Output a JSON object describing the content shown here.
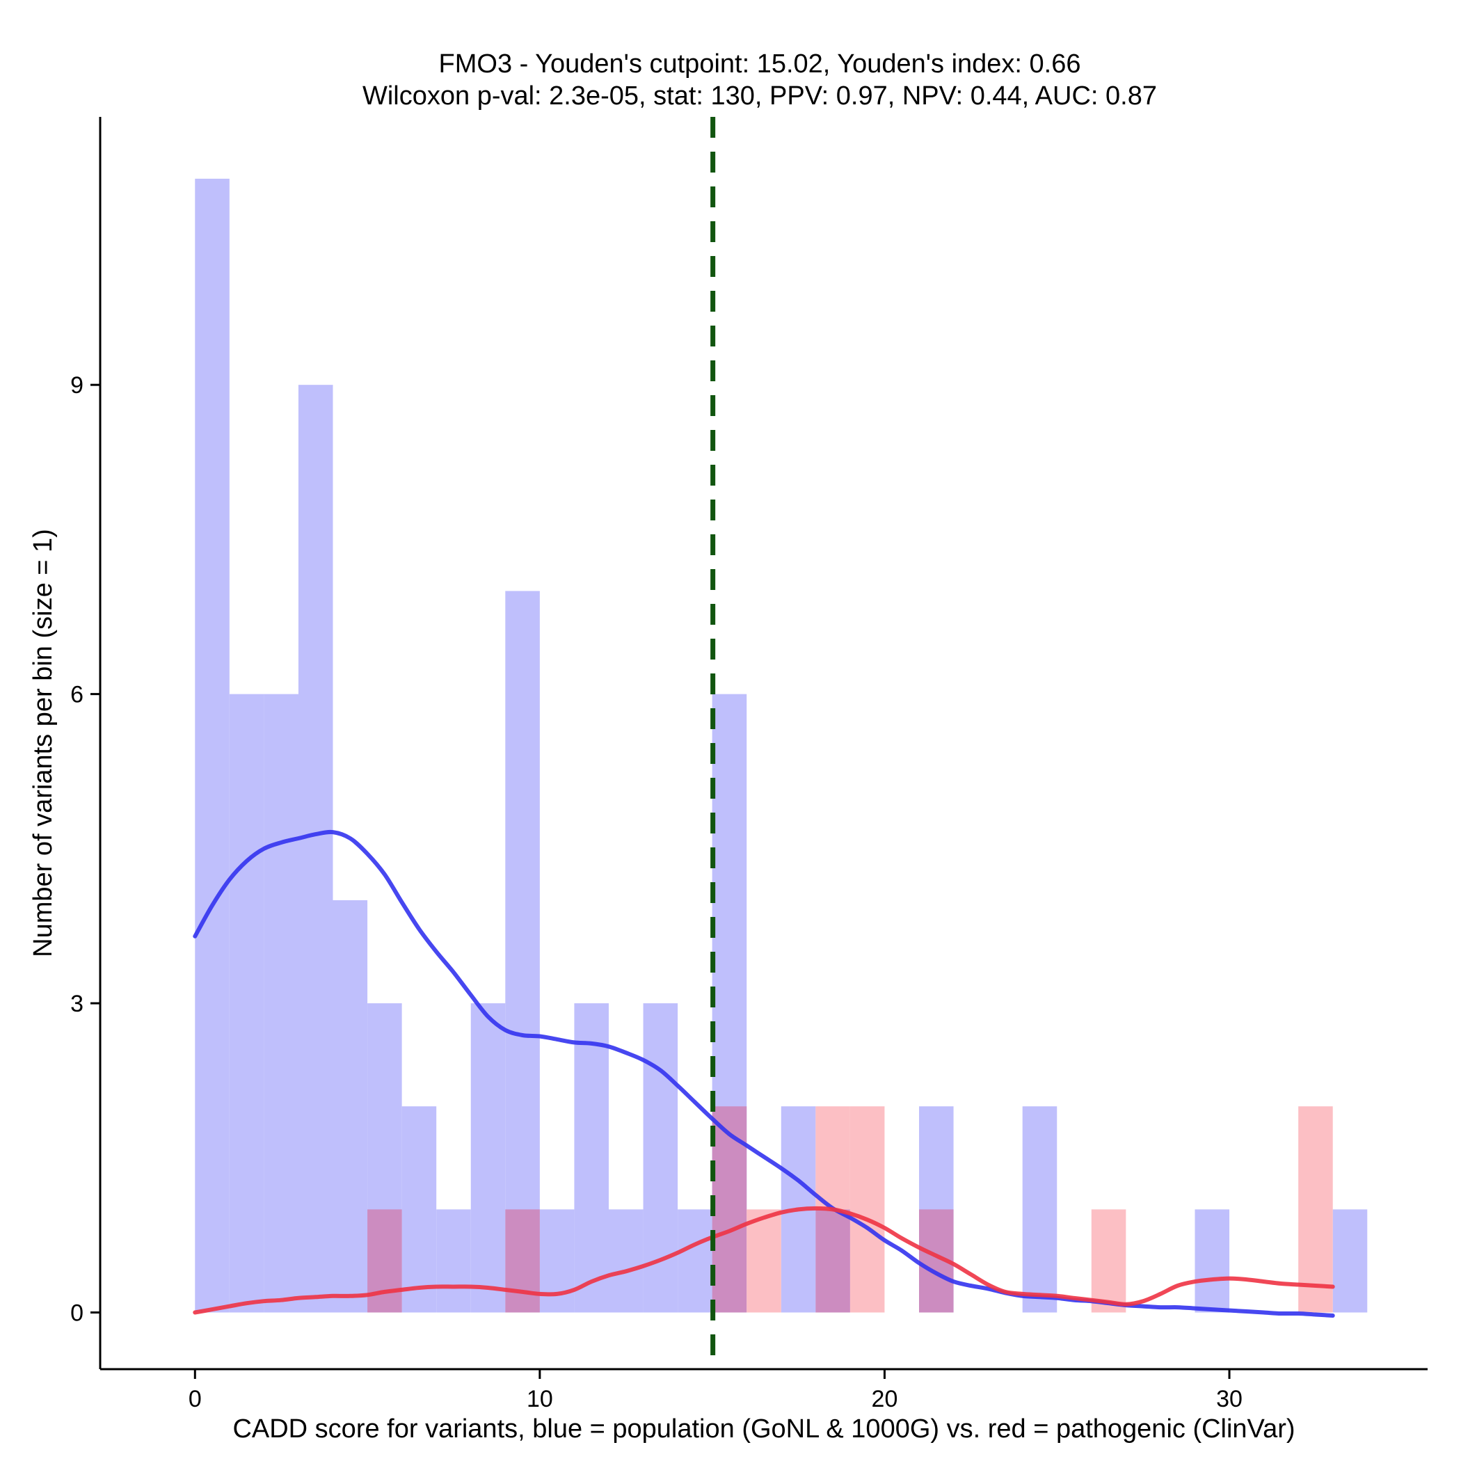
{
  "chart_data": {
    "type": "bar",
    "subtype": "overlaid-histogram-with-density",
    "title_line1": "FMO3 - Youden's cutpoint: 15.02, Youden's index: 0.66",
    "title_line2": "Wilcoxon p-val: 2.3e-05, stat: 130, PPV: 0.97, NPV: 0.44, AUC: 0.87",
    "xlabel": "CADD score for variants, blue = population (GoNL & 1000G) vs. red = pathogenic (ClinVar)",
    "ylabel": "Number of variants per bin (size = 1)",
    "xlim": [
      -2.75,
      35.75
    ],
    "ylim": [
      -0.55,
      11.6
    ],
    "xticks": [
      0,
      10,
      20,
      30
    ],
    "yticks": [
      0,
      3,
      6,
      9
    ],
    "bin_width": 1,
    "cutpoint": 15.02,
    "colors": {
      "population_bar": "#bfbffc",
      "pathogenic_bar": "#fcbfc4",
      "overlap_bar": "#cc8cc0",
      "population_line": "#3333ee",
      "pathogenic_line": "#ee3344",
      "cutpoint_line": "#11550f"
    },
    "series": [
      {
        "name": "population (GoNL & 1000G)",
        "bin_starts": [
          0,
          1,
          2,
          3,
          4,
          5,
          6,
          7,
          8,
          9,
          10,
          11,
          12,
          13,
          14,
          15,
          16,
          17,
          18,
          19,
          20,
          21,
          22,
          23,
          24,
          25,
          26,
          27,
          28,
          29,
          30,
          31,
          32,
          33
        ],
        "counts": [
          11,
          6,
          6,
          9,
          4,
          3,
          2,
          1,
          3,
          7,
          1,
          3,
          1,
          3,
          1,
          6,
          0,
          2,
          1,
          0,
          0,
          2,
          0,
          0,
          2,
          0,
          0,
          0,
          0,
          1,
          0,
          0,
          0,
          1
        ]
      },
      {
        "name": "pathogenic (ClinVar)",
        "bin_starts": [
          0,
          1,
          2,
          3,
          4,
          5,
          6,
          7,
          8,
          9,
          10,
          11,
          12,
          13,
          14,
          15,
          16,
          17,
          18,
          19,
          20,
          21,
          22,
          23,
          24,
          25,
          26,
          27,
          28,
          29,
          30,
          31,
          32,
          33
        ],
        "counts": [
          0,
          0,
          0,
          0,
          0,
          1,
          0,
          0,
          0,
          1,
          0,
          0,
          0,
          0,
          0,
          2,
          1,
          0,
          2,
          2,
          0,
          1,
          0,
          0,
          0,
          0,
          1,
          0,
          0,
          0,
          0,
          0,
          2,
          0
        ]
      }
    ],
    "density": [
      {
        "name": "population",
        "x": [
          0,
          0.5,
          1,
          1.5,
          2,
          2.5,
          3,
          3.5,
          4,
          4.5,
          5,
          5.5,
          6,
          6.5,
          7,
          7.5,
          8,
          8.5,
          9,
          9.5,
          10,
          10.5,
          11,
          11.5,
          12,
          12.5,
          13,
          13.5,
          14,
          14.5,
          15,
          15.5,
          16,
          16.5,
          17,
          17.5,
          18,
          18.5,
          19,
          19.5,
          20,
          20.5,
          21,
          21.5,
          22,
          22.5,
          23,
          23.5,
          24,
          24.5,
          25,
          25.5,
          26,
          26.5,
          27,
          27.5,
          28,
          28.5,
          29,
          29.5,
          30,
          30.5,
          31,
          31.5,
          32,
          32.5,
          33
        ],
        "y": [
          3.65,
          3.95,
          4.2,
          4.38,
          4.5,
          4.56,
          4.6,
          4.64,
          4.66,
          4.6,
          4.45,
          4.25,
          3.98,
          3.72,
          3.5,
          3.3,
          3.08,
          2.87,
          2.74,
          2.69,
          2.68,
          2.65,
          2.62,
          2.61,
          2.58,
          2.52,
          2.45,
          2.35,
          2.2,
          2.04,
          1.88,
          1.73,
          1.62,
          1.51,
          1.4,
          1.28,
          1.14,
          1.01,
          0.92,
          0.82,
          0.7,
          0.6,
          0.48,
          0.38,
          0.3,
          0.26,
          0.23,
          0.19,
          0.16,
          0.15,
          0.14,
          0.12,
          0.11,
          0.09,
          0.07,
          0.06,
          0.05,
          0.05,
          0.04,
          0.03,
          0.02,
          0.01,
          0.0,
          -0.01,
          -0.01,
          -0.02,
          -0.03
        ]
      },
      {
        "name": "pathogenic",
        "x": [
          0,
          0.5,
          1,
          1.5,
          2,
          2.5,
          3,
          3.5,
          4,
          4.5,
          5,
          5.5,
          6,
          6.5,
          7,
          7.5,
          8,
          8.5,
          9,
          9.5,
          10,
          10.5,
          11,
          11.5,
          12,
          12.5,
          13,
          13.5,
          14,
          14.5,
          15,
          15.5,
          16,
          16.5,
          17,
          17.5,
          18,
          18.5,
          19,
          19.5,
          20,
          20.5,
          21,
          21.5,
          22,
          22.5,
          23,
          23.5,
          24,
          24.5,
          25,
          25.5,
          26,
          26.5,
          27,
          27.5,
          28,
          28.5,
          29,
          29.5,
          30,
          30.5,
          31,
          31.5,
          32,
          32.5,
          33
        ],
        "y": [
          0.0,
          0.03,
          0.06,
          0.09,
          0.11,
          0.12,
          0.14,
          0.15,
          0.16,
          0.16,
          0.17,
          0.2,
          0.22,
          0.24,
          0.25,
          0.25,
          0.25,
          0.24,
          0.22,
          0.2,
          0.18,
          0.18,
          0.22,
          0.3,
          0.36,
          0.4,
          0.45,
          0.51,
          0.58,
          0.66,
          0.73,
          0.79,
          0.86,
          0.92,
          0.97,
          1.0,
          1.01,
          1.0,
          0.96,
          0.9,
          0.82,
          0.72,
          0.63,
          0.55,
          0.47,
          0.37,
          0.27,
          0.2,
          0.18,
          0.17,
          0.16,
          0.14,
          0.12,
          0.1,
          0.08,
          0.11,
          0.18,
          0.26,
          0.3,
          0.32,
          0.33,
          0.32,
          0.3,
          0.28,
          0.27,
          0.26,
          0.25
        ]
      }
    ]
  }
}
